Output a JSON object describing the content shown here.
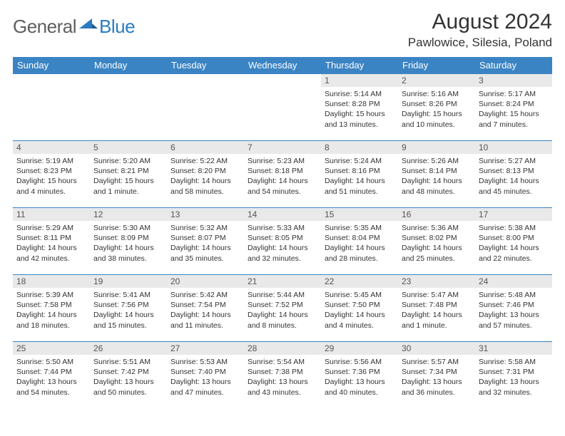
{
  "brand": {
    "word1": "General",
    "word2": "Blue"
  },
  "title": "August 2024",
  "location": "Pawlowice, Silesia, Poland",
  "colors": {
    "header_bg": "#3b84c4",
    "header_text": "#ffffff",
    "daynum_bg": "#e9e9e9",
    "border": "#3b84c4",
    "logo_gray": "#5e5e5e",
    "logo_blue": "#2b7bbf"
  },
  "dow": [
    "Sunday",
    "Monday",
    "Tuesday",
    "Wednesday",
    "Thursday",
    "Friday",
    "Saturday"
  ],
  "weeks": [
    [
      null,
      null,
      null,
      null,
      {
        "n": "1",
        "sr": "Sunrise: 5:14 AM",
        "ss": "Sunset: 8:28 PM",
        "dl": "Daylight: 15 hours and 13 minutes."
      },
      {
        "n": "2",
        "sr": "Sunrise: 5:16 AM",
        "ss": "Sunset: 8:26 PM",
        "dl": "Daylight: 15 hours and 10 minutes."
      },
      {
        "n": "3",
        "sr": "Sunrise: 5:17 AM",
        "ss": "Sunset: 8:24 PM",
        "dl": "Daylight: 15 hours and 7 minutes."
      }
    ],
    [
      {
        "n": "4",
        "sr": "Sunrise: 5:19 AM",
        "ss": "Sunset: 8:23 PM",
        "dl": "Daylight: 15 hours and 4 minutes."
      },
      {
        "n": "5",
        "sr": "Sunrise: 5:20 AM",
        "ss": "Sunset: 8:21 PM",
        "dl": "Daylight: 15 hours and 1 minute."
      },
      {
        "n": "6",
        "sr": "Sunrise: 5:22 AM",
        "ss": "Sunset: 8:20 PM",
        "dl": "Daylight: 14 hours and 58 minutes."
      },
      {
        "n": "7",
        "sr": "Sunrise: 5:23 AM",
        "ss": "Sunset: 8:18 PM",
        "dl": "Daylight: 14 hours and 54 minutes."
      },
      {
        "n": "8",
        "sr": "Sunrise: 5:24 AM",
        "ss": "Sunset: 8:16 PM",
        "dl": "Daylight: 14 hours and 51 minutes."
      },
      {
        "n": "9",
        "sr": "Sunrise: 5:26 AM",
        "ss": "Sunset: 8:14 PM",
        "dl": "Daylight: 14 hours and 48 minutes."
      },
      {
        "n": "10",
        "sr": "Sunrise: 5:27 AM",
        "ss": "Sunset: 8:13 PM",
        "dl": "Daylight: 14 hours and 45 minutes."
      }
    ],
    [
      {
        "n": "11",
        "sr": "Sunrise: 5:29 AM",
        "ss": "Sunset: 8:11 PM",
        "dl": "Daylight: 14 hours and 42 minutes."
      },
      {
        "n": "12",
        "sr": "Sunrise: 5:30 AM",
        "ss": "Sunset: 8:09 PM",
        "dl": "Daylight: 14 hours and 38 minutes."
      },
      {
        "n": "13",
        "sr": "Sunrise: 5:32 AM",
        "ss": "Sunset: 8:07 PM",
        "dl": "Daylight: 14 hours and 35 minutes."
      },
      {
        "n": "14",
        "sr": "Sunrise: 5:33 AM",
        "ss": "Sunset: 8:05 PM",
        "dl": "Daylight: 14 hours and 32 minutes."
      },
      {
        "n": "15",
        "sr": "Sunrise: 5:35 AM",
        "ss": "Sunset: 8:04 PM",
        "dl": "Daylight: 14 hours and 28 minutes."
      },
      {
        "n": "16",
        "sr": "Sunrise: 5:36 AM",
        "ss": "Sunset: 8:02 PM",
        "dl": "Daylight: 14 hours and 25 minutes."
      },
      {
        "n": "17",
        "sr": "Sunrise: 5:38 AM",
        "ss": "Sunset: 8:00 PM",
        "dl": "Daylight: 14 hours and 22 minutes."
      }
    ],
    [
      {
        "n": "18",
        "sr": "Sunrise: 5:39 AM",
        "ss": "Sunset: 7:58 PM",
        "dl": "Daylight: 14 hours and 18 minutes."
      },
      {
        "n": "19",
        "sr": "Sunrise: 5:41 AM",
        "ss": "Sunset: 7:56 PM",
        "dl": "Daylight: 14 hours and 15 minutes."
      },
      {
        "n": "20",
        "sr": "Sunrise: 5:42 AM",
        "ss": "Sunset: 7:54 PM",
        "dl": "Daylight: 14 hours and 11 minutes."
      },
      {
        "n": "21",
        "sr": "Sunrise: 5:44 AM",
        "ss": "Sunset: 7:52 PM",
        "dl": "Daylight: 14 hours and 8 minutes."
      },
      {
        "n": "22",
        "sr": "Sunrise: 5:45 AM",
        "ss": "Sunset: 7:50 PM",
        "dl": "Daylight: 14 hours and 4 minutes."
      },
      {
        "n": "23",
        "sr": "Sunrise: 5:47 AM",
        "ss": "Sunset: 7:48 PM",
        "dl": "Daylight: 14 hours and 1 minute."
      },
      {
        "n": "24",
        "sr": "Sunrise: 5:48 AM",
        "ss": "Sunset: 7:46 PM",
        "dl": "Daylight: 13 hours and 57 minutes."
      }
    ],
    [
      {
        "n": "25",
        "sr": "Sunrise: 5:50 AM",
        "ss": "Sunset: 7:44 PM",
        "dl": "Daylight: 13 hours and 54 minutes."
      },
      {
        "n": "26",
        "sr": "Sunrise: 5:51 AM",
        "ss": "Sunset: 7:42 PM",
        "dl": "Daylight: 13 hours and 50 minutes."
      },
      {
        "n": "27",
        "sr": "Sunrise: 5:53 AM",
        "ss": "Sunset: 7:40 PM",
        "dl": "Daylight: 13 hours and 47 minutes."
      },
      {
        "n": "28",
        "sr": "Sunrise: 5:54 AM",
        "ss": "Sunset: 7:38 PM",
        "dl": "Daylight: 13 hours and 43 minutes."
      },
      {
        "n": "29",
        "sr": "Sunrise: 5:56 AM",
        "ss": "Sunset: 7:36 PM",
        "dl": "Daylight: 13 hours and 40 minutes."
      },
      {
        "n": "30",
        "sr": "Sunrise: 5:57 AM",
        "ss": "Sunset: 7:34 PM",
        "dl": "Daylight: 13 hours and 36 minutes."
      },
      {
        "n": "31",
        "sr": "Sunrise: 5:58 AM",
        "ss": "Sunset: 7:31 PM",
        "dl": "Daylight: 13 hours and 32 minutes."
      }
    ]
  ]
}
